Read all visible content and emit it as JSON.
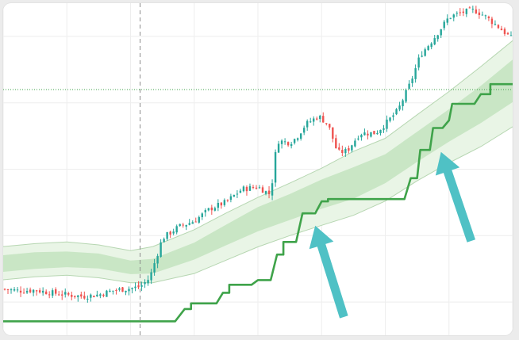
{
  "chart_data": {
    "type": "candlestick",
    "title": "",
    "xlabel": "",
    "ylabel": "",
    "grid": true,
    "legend": "none",
    "x_range": [
      0,
      160
    ],
    "y_range": [
      0,
      100
    ],
    "crosshair": {
      "x": 43,
      "y": 74
    },
    "colors": {
      "up": "#26a69a",
      "down": "#ef5350",
      "trailing_stop": "#3fa34a",
      "channel_fill_outer": "#e9f5e6",
      "channel_fill_inner": "#c9e6c5",
      "channel_line": "#b6d6b1",
      "arrow": "#4fc1c5",
      "crosshair_vertical": "#8c8c8c",
      "crosshair_horizontal": "#3fa34a",
      "grid": "#eeeeee"
    },
    "close_path": [
      [
        0,
        13.9
      ],
      [
        5,
        13.4
      ],
      [
        10,
        13.6
      ],
      [
        15,
        12.8
      ],
      [
        20,
        12.2
      ],
      [
        25,
        11.7
      ],
      [
        30,
        12.2
      ],
      [
        35,
        13.6
      ],
      [
        40,
        14.1
      ],
      [
        43,
        14.6
      ],
      [
        46,
        17.2
      ],
      [
        50,
        29.2
      ],
      [
        55,
        32.6
      ],
      [
        60,
        34.4
      ],
      [
        65,
        38.1
      ],
      [
        70,
        40.1
      ],
      [
        75,
        44.0
      ],
      [
        80,
        44.7
      ],
      [
        84,
        42.3
      ],
      [
        86,
        58.6
      ],
      [
        90,
        58.0
      ],
      [
        92,
        59.4
      ],
      [
        95,
        63.5
      ],
      [
        99,
        66.0
      ],
      [
        102,
        63.6
      ],
      [
        105,
        55.0
      ],
      [
        108,
        55.5
      ],
      [
        112,
        60.8
      ],
      [
        117,
        60.9
      ],
      [
        120,
        63.6
      ],
      [
        124,
        67.8
      ],
      [
        128,
        76.2
      ],
      [
        131,
        84.4
      ],
      [
        135,
        89.1
      ],
      [
        140,
        95.8
      ],
      [
        144,
        97.2
      ],
      [
        148,
        97.9
      ],
      [
        151,
        96.3
      ],
      [
        155,
        93.3
      ],
      [
        160,
        89.1
      ]
    ],
    "channel_upper": [
      [
        0,
        26.7
      ],
      [
        10,
        27.6
      ],
      [
        20,
        28.1
      ],
      [
        30,
        27.2
      ],
      [
        40,
        25.5
      ],
      [
        47,
        26.7
      ],
      [
        60,
        31.8
      ],
      [
        70,
        36.8
      ],
      [
        80,
        41.5
      ],
      [
        90,
        45.8
      ],
      [
        100,
        50.3
      ],
      [
        110,
        55.4
      ],
      [
        120,
        59.3
      ],
      [
        130,
        66.4
      ],
      [
        140,
        73.4
      ],
      [
        150,
        80.9
      ],
      [
        160,
        88.7
      ]
    ],
    "channel_inner_upper": [
      [
        0,
        24.1
      ],
      [
        10,
        25.0
      ],
      [
        20,
        25.2
      ],
      [
        30,
        24.6
      ],
      [
        40,
        22.5
      ],
      [
        47,
        23.0
      ],
      [
        60,
        27.9
      ],
      [
        70,
        33.3
      ],
      [
        80,
        38.6
      ],
      [
        90,
        42.5
      ],
      [
        100,
        46.9
      ],
      [
        110,
        50.6
      ],
      [
        120,
        54.5
      ],
      [
        130,
        61.3
      ],
      [
        140,
        68.1
      ],
      [
        150,
        75.1
      ],
      [
        160,
        83.0
      ]
    ],
    "channel_inner_lower": [
      [
        0,
        19.1
      ],
      [
        10,
        20.0
      ],
      [
        20,
        20.5
      ],
      [
        30,
        20.1
      ],
      [
        40,
        18.4
      ],
      [
        47,
        18.6
      ],
      [
        60,
        22.8
      ],
      [
        70,
        27.1
      ],
      [
        80,
        31.3
      ],
      [
        90,
        34.7
      ],
      [
        100,
        38.1
      ],
      [
        110,
        41.1
      ],
      [
        120,
        45.8
      ],
      [
        130,
        52.2
      ],
      [
        140,
        58.3
      ],
      [
        150,
        63.9
      ],
      [
        160,
        70.2
      ]
    ],
    "channel_lower": [
      [
        0,
        16.7
      ],
      [
        10,
        17.6
      ],
      [
        20,
        18.1
      ],
      [
        30,
        17.3
      ],
      [
        40,
        15.8
      ],
      [
        47,
        15.8
      ],
      [
        60,
        18.6
      ],
      [
        70,
        22.6
      ],
      [
        80,
        26.6
      ],
      [
        90,
        30.0
      ],
      [
        100,
        33.1
      ],
      [
        110,
        36.1
      ],
      [
        120,
        40.4
      ],
      [
        130,
        46.5
      ],
      [
        140,
        51.9
      ],
      [
        150,
        56.8
      ],
      [
        160,
        62.8
      ]
    ],
    "trailing_stop_steps": [
      [
        0,
        4.2
      ],
      [
        54,
        4.2
      ],
      [
        57,
        7.9
      ],
      [
        59,
        7.9
      ],
      [
        59,
        9.6
      ],
      [
        67,
        9.6
      ],
      [
        69,
        12.8
      ],
      [
        71,
        12.8
      ],
      [
        71,
        15.2
      ],
      [
        78,
        15.2
      ],
      [
        80,
        16.6
      ],
      [
        84,
        16.6
      ],
      [
        86,
        24.3
      ],
      [
        88,
        24.3
      ],
      [
        88,
        28.1
      ],
      [
        92,
        28.1
      ],
      [
        94,
        36.7
      ],
      [
        98,
        36.7
      ],
      [
        100,
        40.3
      ],
      [
        102,
        40.3
      ],
      [
        102,
        41.0
      ],
      [
        126,
        41.0
      ],
      [
        128,
        47.3
      ],
      [
        130,
        47.3
      ],
      [
        131,
        55.8
      ],
      [
        134,
        55.8
      ],
      [
        135,
        62.4
      ],
      [
        138,
        62.4
      ],
      [
        140,
        64.7
      ],
      [
        141,
        69.7
      ],
      [
        148,
        69.7
      ],
      [
        150,
        72.6
      ],
      [
        153,
        72.6
      ],
      [
        153,
        75.6
      ],
      [
        160,
        75.6
      ]
    ],
    "annotations": [
      {
        "type": "arrow",
        "from": [
          107,
          5.5
        ],
        "to": [
          98,
          33.0
        ]
      },
      {
        "type": "arrow",
        "from": [
          147,
          28.4
        ],
        "to": [
          137.5,
          55.2
        ]
      }
    ]
  }
}
